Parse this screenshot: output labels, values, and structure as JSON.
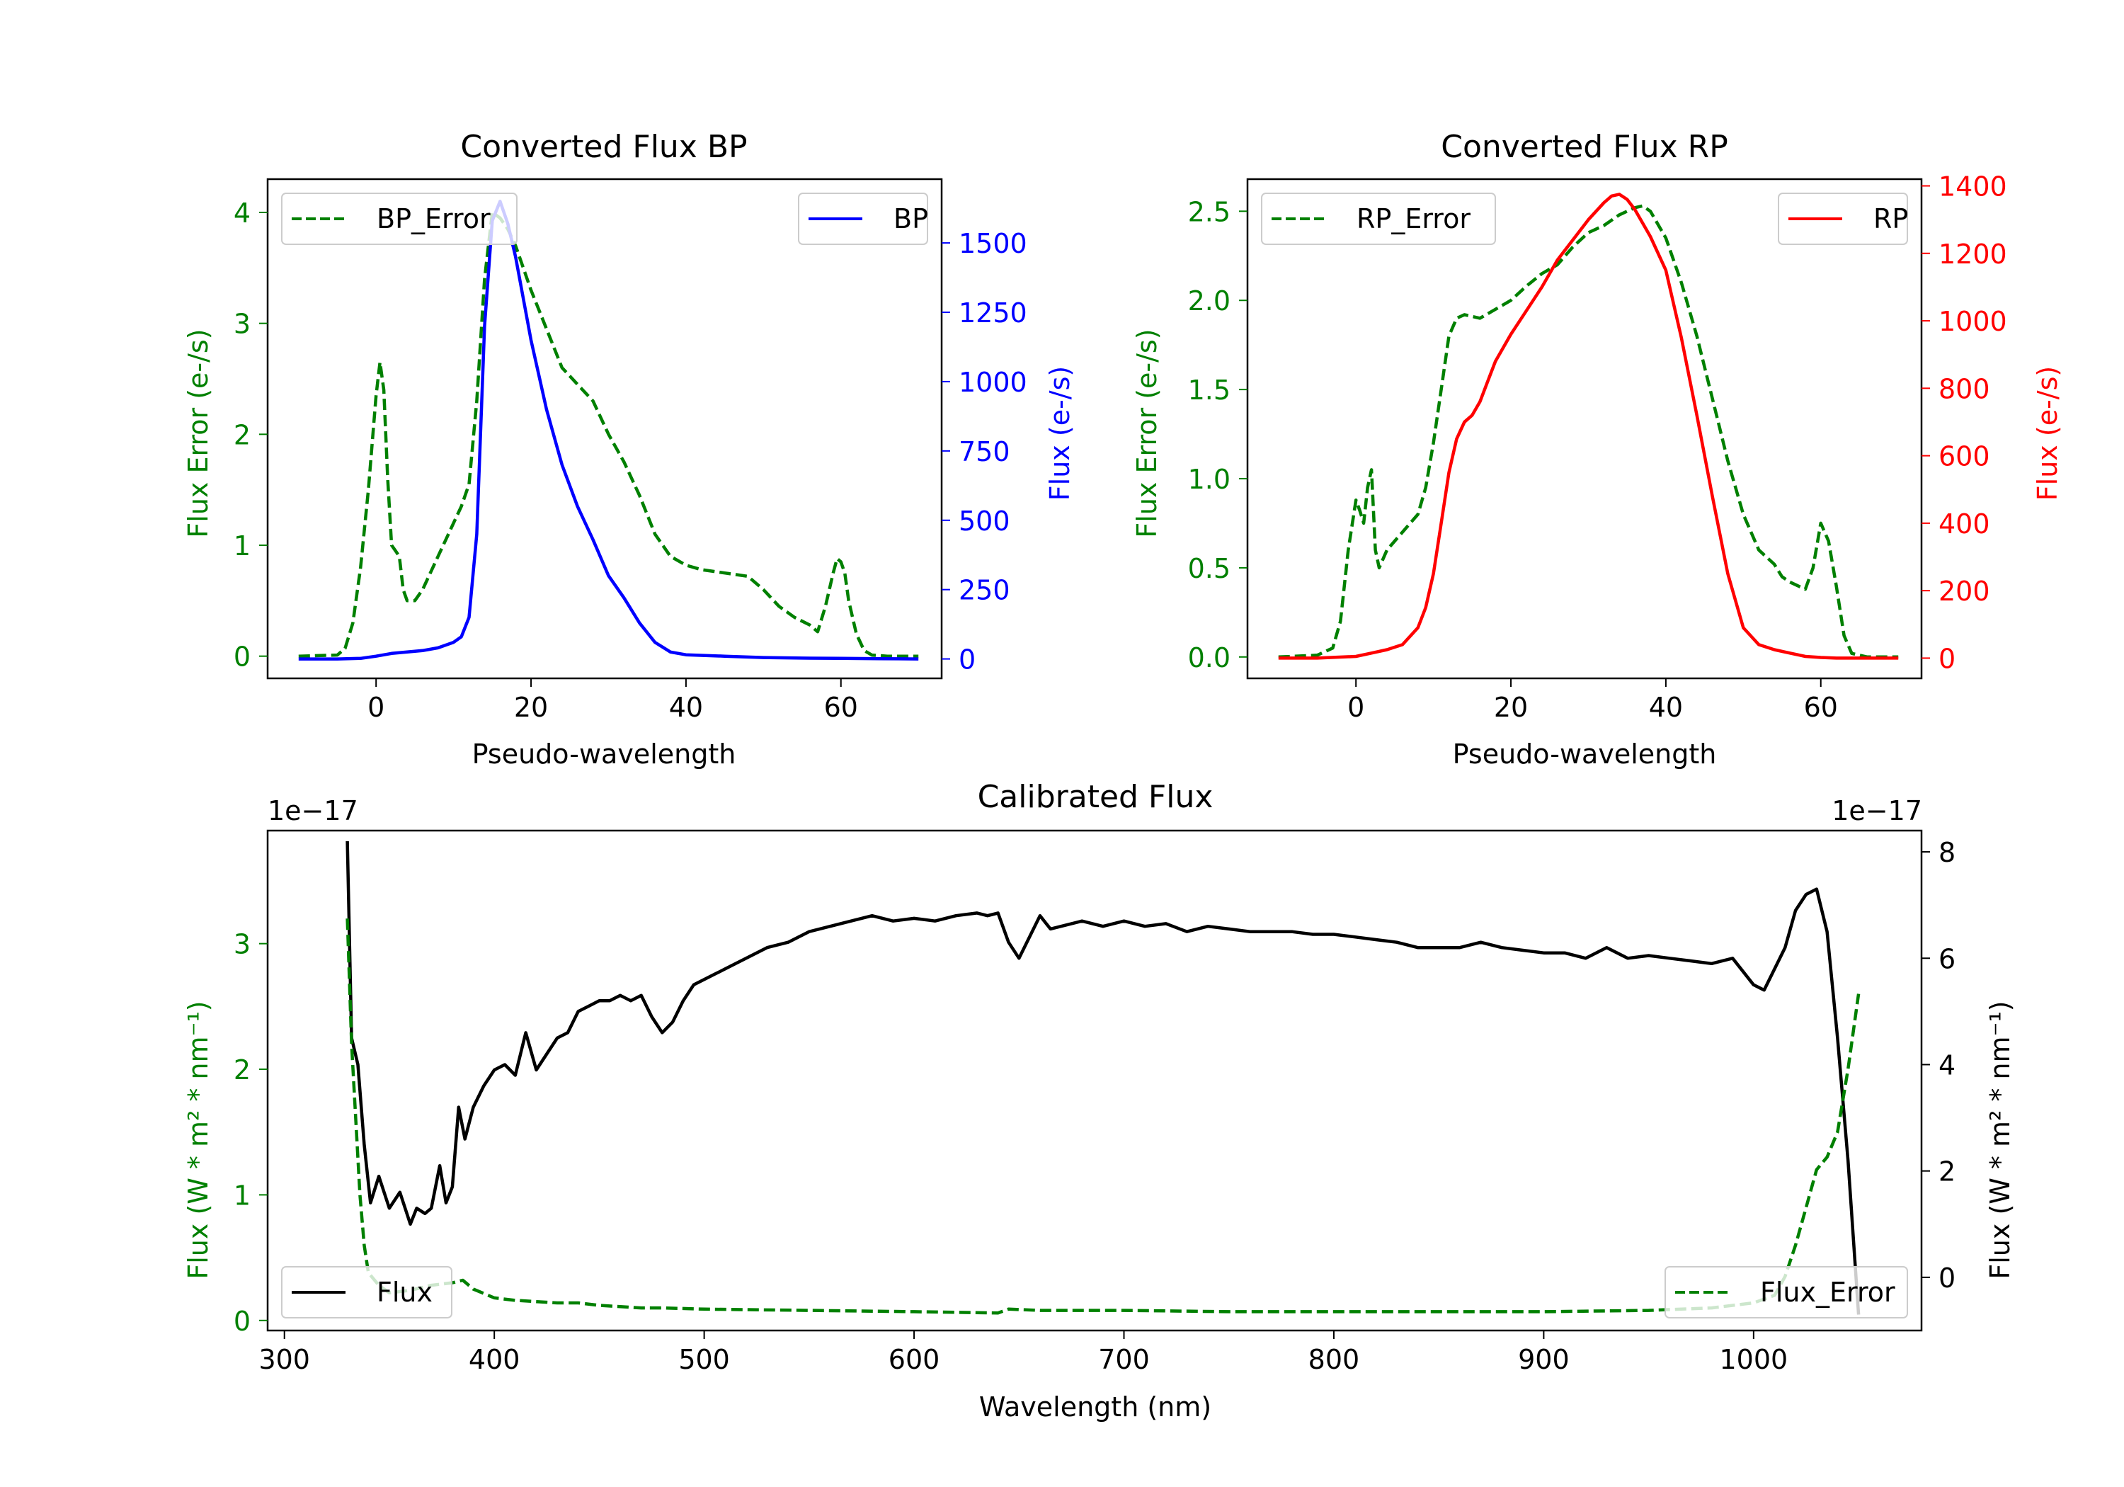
{
  "figure": {
    "width_label": "",
    "background": "#ffffff"
  },
  "chart_data": [
    {
      "id": "bp",
      "type": "line",
      "title": "Converted Flux BP",
      "xlabel": "Pseudo-wavelength",
      "xlim": [
        -14,
        73
      ],
      "xticks": [
        0,
        20,
        40,
        60
      ],
      "xtick_labels": [
        "0",
        "20",
        "40",
        "60"
      ],
      "left_axis": {
        "label": "Flux Error (e-/s)",
        "color": "#008000",
        "ylim": [
          -0.2,
          4.3
        ],
        "ticks": [
          0,
          1,
          2,
          3,
          4
        ],
        "tick_labels": [
          "0",
          "1",
          "2",
          "3",
          "4"
        ]
      },
      "right_axis": {
        "label": "Flux (e-/s)",
        "color": "#0000ff",
        "ylim": [
          -70,
          1730
        ],
        "ticks": [
          0,
          250,
          500,
          750,
          1000,
          1250,
          1500
        ],
        "tick_labels": [
          "0",
          "250",
          "500",
          "750",
          "1000",
          "1250",
          "1500"
        ]
      },
      "series": [
        {
          "name": "BP_Error",
          "axis": "left",
          "color": "#008000",
          "dash": true,
          "legend": "BP_Error",
          "x": [
            -10,
            -5,
            -4,
            -3,
            -2,
            -1,
            0,
            0.5,
            1,
            1.5,
            2,
            2.5,
            3,
            3.5,
            4,
            5,
            6,
            7,
            8,
            9,
            10,
            11,
            12,
            13,
            14,
            15,
            16,
            17,
            18,
            19,
            20,
            22,
            24,
            26,
            28,
            30,
            32,
            34,
            36,
            38,
            40,
            42,
            45,
            48,
            50,
            52,
            54,
            56,
            57,
            58,
            59,
            59.5,
            60,
            60.5,
            61,
            62,
            63,
            64,
            66,
            68,
            70
          ],
          "y": [
            0,
            0.01,
            0.07,
            0.3,
            0.8,
            1.5,
            2.35,
            2.65,
            2.4,
            1.6,
            1.0,
            0.95,
            0.9,
            0.6,
            0.5,
            0.5,
            0.6,
            0.75,
            0.9,
            1.05,
            1.2,
            1.35,
            1.55,
            2.3,
            3.4,
            4.0,
            3.95,
            3.85,
            3.7,
            3.5,
            3.3,
            2.95,
            2.6,
            2.45,
            2.3,
            2.0,
            1.75,
            1.45,
            1.1,
            0.9,
            0.82,
            0.78,
            0.75,
            0.72,
            0.6,
            0.45,
            0.35,
            0.28,
            0.22,
            0.45,
            0.75,
            0.88,
            0.85,
            0.75,
            0.5,
            0.2,
            0.05,
            0.01,
            0,
            0,
            0
          ]
        },
        {
          "name": "BP",
          "axis": "right",
          "color": "#0000ff",
          "dash": false,
          "legend": "BP",
          "x": [
            -10,
            -5,
            -2,
            0,
            2,
            4,
            6,
            8,
            10,
            11,
            12,
            13,
            14,
            15,
            16,
            17,
            18,
            20,
            22,
            24,
            26,
            28,
            30,
            32,
            34,
            36,
            38,
            40,
            45,
            50,
            55,
            60,
            65,
            70
          ],
          "y": [
            0,
            0,
            2,
            10,
            20,
            25,
            30,
            40,
            60,
            80,
            150,
            450,
            1200,
            1580,
            1650,
            1570,
            1450,
            1150,
            900,
            700,
            550,
            430,
            300,
            220,
            130,
            60,
            25,
            15,
            10,
            5,
            3,
            2,
            1,
            0
          ]
        }
      ]
    },
    {
      "id": "rp",
      "type": "line",
      "title": "Converted Flux RP",
      "xlabel": "Pseudo-wavelength",
      "xlim": [
        -14,
        73
      ],
      "xticks": [
        0,
        20,
        40,
        60
      ],
      "xtick_labels": [
        "0",
        "20",
        "40",
        "60"
      ],
      "left_axis": {
        "label": "Flux Error (e-/s)",
        "color": "#008000",
        "ylim": [
          -0.12,
          2.68
        ],
        "ticks": [
          0,
          0.5,
          1.0,
          1.5,
          2.0,
          2.5
        ],
        "tick_labels": [
          "0.0",
          "0.5",
          "1.0",
          "1.5",
          "2.0",
          "2.5"
        ]
      },
      "right_axis": {
        "label": "Flux (e-/s)",
        "color": "#ff0000",
        "ylim": [
          -60,
          1420
        ],
        "ticks": [
          0,
          200,
          400,
          600,
          800,
          1000,
          1200,
          1400
        ],
        "tick_labels": [
          "0",
          "200",
          "400",
          "600",
          "800",
          "1000",
          "1200",
          "1400"
        ]
      },
      "series": [
        {
          "name": "RP_Error",
          "axis": "left",
          "color": "#008000",
          "dash": true,
          "legend": "RP_Error",
          "x": [
            -10,
            -5,
            -3,
            -2,
            -1,
            0,
            0.5,
            1,
            1.5,
            2,
            2.5,
            3,
            3.5,
            4,
            5,
            6,
            7,
            8,
            9,
            10,
            11,
            12,
            13,
            14,
            16,
            18,
            20,
            22,
            24,
            26,
            28,
            30,
            32,
            34,
            36,
            37,
            38,
            40,
            42,
            44,
            46,
            48,
            50,
            52,
            54,
            55,
            56,
            57,
            58,
            59,
            60,
            61,
            62,
            63,
            64,
            66,
            70
          ],
          "y": [
            0,
            0.01,
            0.05,
            0.2,
            0.6,
            0.88,
            0.82,
            0.75,
            0.95,
            1.05,
            0.6,
            0.5,
            0.55,
            0.6,
            0.65,
            0.7,
            0.75,
            0.8,
            0.95,
            1.2,
            1.5,
            1.8,
            1.9,
            1.92,
            1.9,
            1.95,
            2.0,
            2.08,
            2.15,
            2.2,
            2.3,
            2.38,
            2.42,
            2.48,
            2.52,
            2.53,
            2.5,
            2.35,
            2.1,
            1.8,
            1.45,
            1.1,
            0.8,
            0.6,
            0.52,
            0.45,
            0.42,
            0.4,
            0.38,
            0.5,
            0.75,
            0.65,
            0.4,
            0.12,
            0.02,
            0,
            0
          ]
        },
        {
          "name": "RP",
          "axis": "right",
          "color": "#ff0000",
          "dash": false,
          "legend": "RP",
          "x": [
            -10,
            -5,
            0,
            2,
            4,
            6,
            8,
            9,
            10,
            11,
            12,
            13,
            14,
            15,
            16,
            17,
            18,
            20,
            22,
            24,
            26,
            28,
            30,
            32,
            33,
            34,
            35,
            36,
            38,
            40,
            42,
            44,
            46,
            48,
            50,
            52,
            54,
            56,
            58,
            60,
            62,
            65,
            70
          ],
          "y": [
            0,
            0,
            5,
            15,
            25,
            40,
            90,
            150,
            250,
            400,
            550,
            650,
            700,
            720,
            760,
            820,
            880,
            960,
            1030,
            1100,
            1180,
            1240,
            1300,
            1350,
            1370,
            1375,
            1360,
            1330,
            1250,
            1150,
            950,
            720,
            480,
            250,
            90,
            40,
            25,
            15,
            5,
            2,
            0,
            0,
            0
          ]
        }
      ]
    },
    {
      "id": "calibrated",
      "type": "line",
      "title": "Calibrated Flux",
      "xlabel": "Wavelength (nm)",
      "xlim": [
        292,
        1080
      ],
      "xticks": [
        300,
        400,
        500,
        600,
        700,
        800,
        900,
        1000
      ],
      "xtick_labels": [
        "300",
        "400",
        "500",
        "600",
        "700",
        "800",
        "900",
        "1000"
      ],
      "left_axis": {
        "label": "Flux (W * m² * nm⁻¹)",
        "color": "#008000",
        "exponent": "1e−17",
        "ylim": [
          -0.08,
          3.9
        ],
        "ticks": [
          0,
          1,
          2,
          3
        ],
        "tick_labels": [
          "0",
          "1",
          "2",
          "3"
        ]
      },
      "right_axis": {
        "label": "Flux (W * m² * nm⁻¹)",
        "color": "#000000",
        "exponent": "1e−17",
        "ylim": [
          -1.0,
          8.4
        ],
        "ticks": [
          0,
          2,
          4,
          6,
          8
        ],
        "tick_labels": [
          "0",
          "2",
          "4",
          "6",
          "8"
        ]
      },
      "series": [
        {
          "name": "Flux",
          "axis": "right",
          "color": "#000000",
          "dash": false,
          "legend": "Flux",
          "x": [
            330,
            332,
            335,
            338,
            341,
            345,
            350,
            355,
            360,
            363,
            367,
            370,
            374,
            377,
            380,
            383,
            386,
            390,
            395,
            400,
            405,
            410,
            415,
            420,
            425,
            430,
            435,
            440,
            445,
            450,
            455,
            460,
            465,
            470,
            475,
            480,
            485,
            490,
            495,
            500,
            505,
            510,
            515,
            520,
            525,
            530,
            540,
            550,
            560,
            570,
            580,
            590,
            600,
            610,
            620,
            630,
            635,
            640,
            645,
            650,
            655,
            660,
            665,
            670,
            680,
            690,
            700,
            710,
            720,
            730,
            740,
            750,
            760,
            770,
            780,
            790,
            800,
            810,
            820,
            830,
            840,
            850,
            860,
            870,
            880,
            890,
            900,
            910,
            920,
            930,
            940,
            950,
            960,
            970,
            980,
            990,
            1000,
            1005,
            1010,
            1015,
            1020,
            1025,
            1030,
            1035,
            1040,
            1045,
            1050
          ],
          "y": [
            8.2,
            4.5,
            4.0,
            2.5,
            1.4,
            1.9,
            1.3,
            1.6,
            1.0,
            1.3,
            1.2,
            1.3,
            2.1,
            1.4,
            1.7,
            3.2,
            2.6,
            3.2,
            3.6,
            3.9,
            4.0,
            3.8,
            4.6,
            3.9,
            4.2,
            4.5,
            4.6,
            5.0,
            5.1,
            5.2,
            5.2,
            5.3,
            5.2,
            5.3,
            4.9,
            4.6,
            4.8,
            5.2,
            5.5,
            5.6,
            5.7,
            5.8,
            5.9,
            6.0,
            6.1,
            6.2,
            6.3,
            6.5,
            6.6,
            6.7,
            6.8,
            6.7,
            6.75,
            6.7,
            6.8,
            6.85,
            6.8,
            6.85,
            6.3,
            6.0,
            6.4,
            6.8,
            6.55,
            6.6,
            6.7,
            6.6,
            6.7,
            6.6,
            6.65,
            6.5,
            6.6,
            6.55,
            6.5,
            6.5,
            6.5,
            6.45,
            6.45,
            6.4,
            6.35,
            6.3,
            6.2,
            6.2,
            6.2,
            6.3,
            6.2,
            6.15,
            6.1,
            6.1,
            6.0,
            6.2,
            6.0,
            6.05,
            6.0,
            5.95,
            5.9,
            6.0,
            5.5,
            5.4,
            5.8,
            6.2,
            6.9,
            7.2,
            7.3,
            6.5,
            4.5,
            2.2,
            -0.7
          ]
        },
        {
          "name": "Flux_Error",
          "axis": "left",
          "color": "#008000",
          "dash": true,
          "legend": "Flux_Error",
          "x": [
            330,
            332,
            334,
            336,
            338,
            340,
            345,
            350,
            360,
            370,
            380,
            385,
            390,
            400,
            410,
            420,
            430,
            440,
            450,
            460,
            470,
            480,
            500,
            550,
            600,
            640,
            645,
            660,
            700,
            750,
            800,
            850,
            900,
            950,
            980,
            1000,
            1010,
            1015,
            1020,
            1025,
            1030,
            1035,
            1040,
            1045,
            1050
          ],
          "y": [
            3.2,
            2.2,
            1.6,
            1.0,
            0.6,
            0.38,
            0.28,
            0.22,
            0.24,
            0.28,
            0.3,
            0.32,
            0.25,
            0.18,
            0.16,
            0.15,
            0.14,
            0.14,
            0.12,
            0.11,
            0.1,
            0.1,
            0.09,
            0.08,
            0.07,
            0.06,
            0.09,
            0.08,
            0.08,
            0.07,
            0.07,
            0.07,
            0.07,
            0.08,
            0.1,
            0.14,
            0.2,
            0.35,
            0.6,
            0.9,
            1.2,
            1.3,
            1.5,
            2.0,
            2.6
          ]
        }
      ]
    }
  ]
}
